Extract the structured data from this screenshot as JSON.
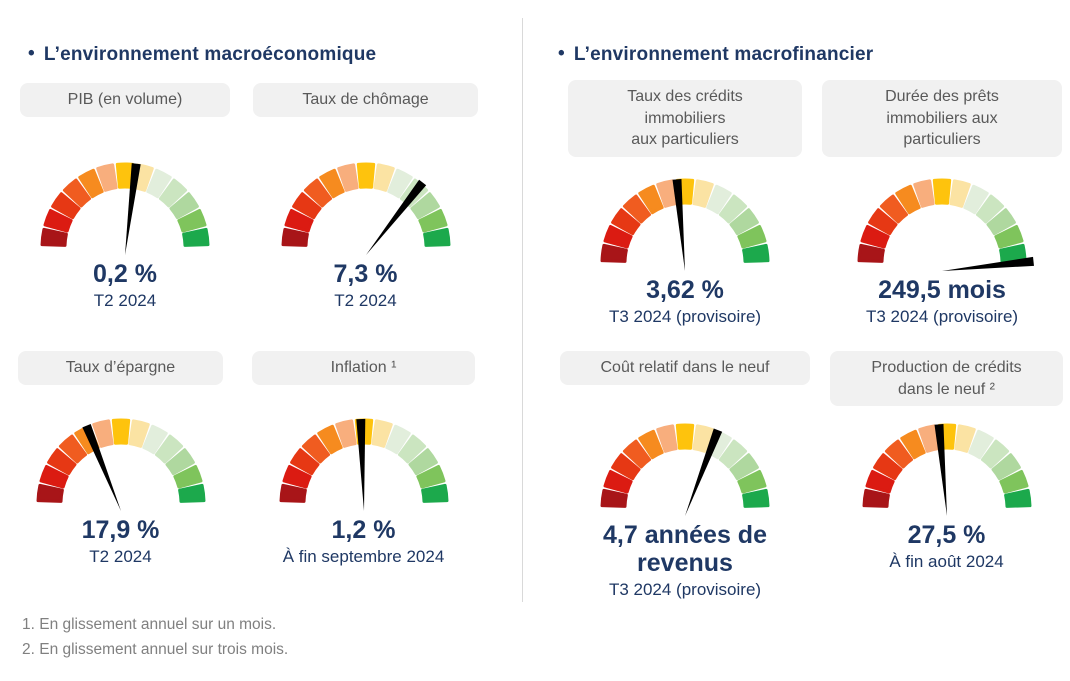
{
  "sections": [
    {
      "title": "L’environnement macroéconomique",
      "gauges": [
        {
          "label": "PIB (en volume)",
          "value": "0,2 %",
          "period": "T2 2024",
          "needle_deg": 7
        },
        {
          "label": "Taux de chômage",
          "value": "7,3 %",
          "period": "T2 2024",
          "needle_deg": 38
        },
        {
          "label": "Taux d’épargne",
          "value": "17,9 %",
          "period": "T2 2024",
          "needle_deg": -22
        },
        {
          "label": "Inflation ¹",
          "value": "1,2 %",
          "period": "À fin septembre 2024",
          "needle_deg": -2
        }
      ]
    },
    {
      "title": "L’environnement macrofinancier",
      "gauges": [
        {
          "label": "Taux des crédits\nimmobiliers\naux particuliers",
          "value": "3,62 %",
          "period": "T3 2024 (provisoire)",
          "needle_deg": -5
        },
        {
          "label": "Durée des prêts\nimmobiliers aux\nparticuliers",
          "value": "249,5 mois",
          "period": "T3 2024 (provisoire)",
          "needle_deg": 84
        },
        {
          "label": "Coût relatif dans le neuf",
          "value": "4,7 années de\nrevenus",
          "period": "T3 2024 (provisoire)",
          "needle_deg": 21
        },
        {
          "label": "Production de crédits\ndans le neuf ²",
          "value": "27,5 %",
          "period": "À fin août 2024",
          "needle_deg": -5
        }
      ]
    }
  ],
  "footnotes": [
    "1. En glissement annuel sur un mois.",
    "2. En glissement annuel sur trois mois."
  ],
  "gauge": {
    "segment_colors": [
      "#A81518",
      "#DB1B12",
      "#E63814",
      "#F05C20",
      "#F68B1F",
      "#F8AE7D",
      "#FEC30D",
      "#FBE3A3",
      "#E2EEDC",
      "#CBE5C0",
      "#AFD89F",
      "#7FC45C",
      "#1CA94C"
    ],
    "needle_color": "#000000"
  },
  "colors": {
    "heading": "#1F3864",
    "value_text": "#1F3864",
    "label_bg": "#F1F1F1",
    "label_text": "#595959",
    "footnote_text": "#808080",
    "divider": "#D9D9D9"
  },
  "chart_data": [
    {
      "type": "gauge",
      "title": "PIB (en volume)",
      "value_label": "0,2 %",
      "period": "T2 2024",
      "needle_deg_from_vertical": 7,
      "scale": "red-to-green semicircle, 13 segments"
    },
    {
      "type": "gauge",
      "title": "Taux de chômage",
      "value_label": "7,3 %",
      "period": "T2 2024",
      "needle_deg_from_vertical": 38,
      "scale": "red-to-green semicircle, 13 segments"
    },
    {
      "type": "gauge",
      "title": "Taux d’épargne",
      "value_label": "17,9 %",
      "period": "T2 2024",
      "needle_deg_from_vertical": -22,
      "scale": "red-to-green semicircle, 13 segments"
    },
    {
      "type": "gauge",
      "title": "Inflation ¹",
      "value_label": "1,2 %",
      "period": "À fin septembre 2024",
      "needle_deg_from_vertical": -2,
      "scale": "red-to-green semicircle, 13 segments"
    },
    {
      "type": "gauge",
      "title": "Taux des crédits immobiliers aux particuliers",
      "value_label": "3,62 %",
      "period": "T3 2024 (provisoire)",
      "needle_deg_from_vertical": -5,
      "scale": "red-to-green semicircle, 13 segments"
    },
    {
      "type": "gauge",
      "title": "Durée des prêts immobiliers aux particuliers",
      "value_label": "249,5 mois",
      "period": "T3 2024 (provisoire)",
      "needle_deg_from_vertical": 84,
      "scale": "red-to-green semicircle, 13 segments"
    },
    {
      "type": "gauge",
      "title": "Coût relatif dans le neuf",
      "value_label": "4,7 années de revenus",
      "period": "T3 2024 (provisoire)",
      "needle_deg_from_vertical": 21,
      "scale": "red-to-green semicircle, 13 segments"
    },
    {
      "type": "gauge",
      "title": "Production de crédits dans le neuf ²",
      "value_label": "27,5 %",
      "period": "À fin août 2024",
      "needle_deg_from_vertical": -5,
      "scale": "red-to-green semicircle, 13 segments"
    }
  ]
}
